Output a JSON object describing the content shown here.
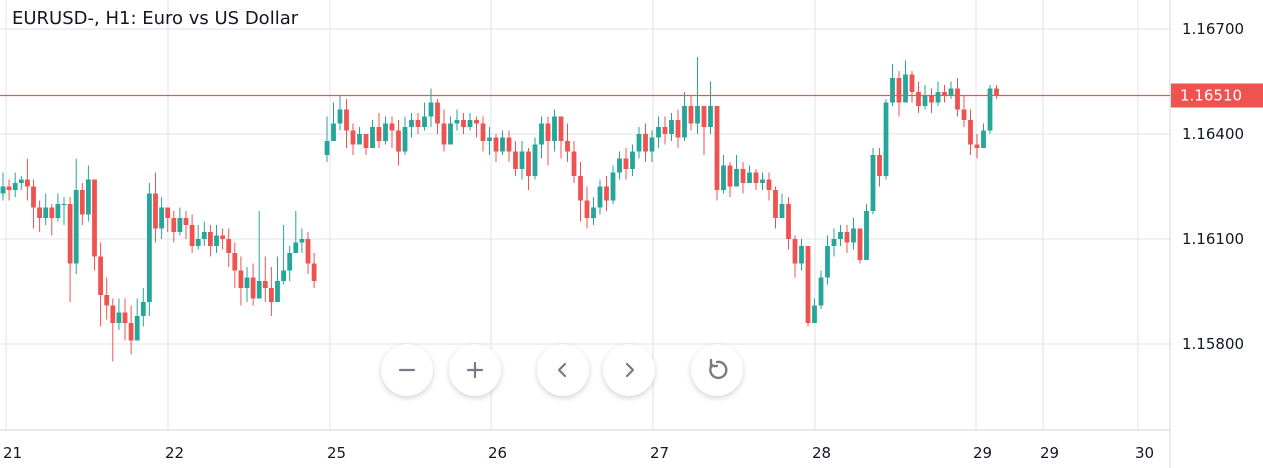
{
  "header": {
    "title": "EURUSD-, H1: Euro vs US Dollar"
  },
  "colors": {
    "up": "#26a69a",
    "down": "#ef5350",
    "price_line": "#ef5350",
    "grid": "#e0e3eb"
  },
  "controls": [
    {
      "name": "zoom-out-button",
      "icon": "minus-icon"
    },
    {
      "name": "zoom-in-button",
      "icon": "plus-icon"
    },
    {
      "name": "scroll-left-button",
      "icon": "chevron-left-icon"
    },
    {
      "name": "scroll-right-button",
      "icon": "chevron-right-icon"
    },
    {
      "name": "reset-chart-button",
      "icon": "reset-icon"
    }
  ],
  "chart_data": {
    "type": "candlestick",
    "title": "EURUSD-, H1: Euro vs US Dollar",
    "y_ticks": [
      "1.16700",
      "1.16400",
      "1.16100",
      "1.15800"
    ],
    "ylim": [
      1.1555,
      1.1685
    ],
    "x_ticks": [
      "21",
      "22",
      "25",
      "26",
      "27",
      "28",
      "29",
      "29",
      "30"
    ],
    "current_price": 1.1651,
    "current_price_label": "1.16510",
    "grid": true,
    "segments": [
      {
        "from": 1.1623,
        "anchors": [
          [
            1.1625,
            1.1629,
            1.1621
          ],
          [
            1.1624,
            1.1627,
            1.1621
          ],
          [
            1.1626,
            1.1629,
            1.1622
          ],
          [
            1.1627,
            1.1628,
            1.1624
          ],
          [
            1.1625,
            1.1633,
            1.1621
          ],
          [
            1.1619,
            1.1627,
            1.1613
          ],
          [
            1.1616,
            1.1621,
            1.1612
          ],
          [
            1.1619,
            1.1623,
            1.1614
          ],
          [
            1.1616,
            1.162,
            1.1611
          ],
          [
            1.162,
            1.1623,
            1.1615
          ],
          [
            1.162,
            1.1622,
            1.1614
          ],
          [
            1.1603,
            1.1622,
            1.1592
          ],
          [
            1.1624,
            1.1633,
            1.16
          ],
          [
            1.1617,
            1.1626,
            1.1614
          ],
          [
            1.1627,
            1.1631,
            1.1615
          ],
          [
            1.1605,
            1.1627,
            1.1601
          ],
          [
            1.1594,
            1.1609,
            1.1585
          ],
          [
            1.1591,
            1.1599,
            1.1587
          ],
          [
            1.1586,
            1.1593,
            1.1575
          ],
          [
            1.1589,
            1.1593,
            1.1584
          ],
          [
            1.1586,
            1.1593,
            1.1581
          ],
          [
            1.1581,
            1.1591,
            1.1577
          ],
          [
            1.1588,
            1.1593,
            1.1582
          ],
          [
            1.1592,
            1.1596,
            1.1585
          ],
          [
            1.1623,
            1.1626,
            1.1588
          ],
          [
            1.1613,
            1.1629,
            1.1609
          ],
          [
            1.1619,
            1.1622,
            1.161
          ],
          [
            1.1616,
            1.1619,
            1.1612
          ],
          [
            1.1612,
            1.1618,
            1.1609
          ],
          [
            1.1616,
            1.1619,
            1.1611
          ],
          [
            1.1614,
            1.1618,
            1.161
          ],
          [
            1.1608,
            1.1617,
            1.1606
          ],
          [
            1.161,
            1.1614,
            1.1607
          ],
          [
            1.1612,
            1.1615,
            1.1608
          ],
          [
            1.1608,
            1.1614,
            1.1605
          ],
          [
            1.1611,
            1.1614,
            1.1606
          ],
          [
            1.161,
            1.1613,
            1.1607
          ],
          [
            1.1606,
            1.1613,
            1.1602
          ],
          [
            1.1601,
            1.1609,
            1.1596
          ],
          [
            1.1596,
            1.1605,
            1.1591
          ],
          [
            1.1599,
            1.1602,
            1.1592
          ],
          [
            1.1593,
            1.1603,
            1.1591
          ],
          [
            1.1598,
            1.1618,
            1.1594
          ],
          [
            1.1596,
            1.1605,
            1.1592
          ],
          [
            1.1592,
            1.1602,
            1.1588
          ],
          [
            1.1598,
            1.1605,
            1.1592
          ],
          [
            1.1601,
            1.1614,
            1.1597
          ],
          [
            1.1606,
            1.1608,
            1.1598
          ],
          [
            1.1609,
            1.1618,
            1.1606
          ],
          [
            1.161,
            1.1613,
            1.1606
          ],
          [
            1.1603,
            1.1612,
            1.16
          ],
          [
            1.1598,
            1.1606,
            1.1596
          ]
        ]
      },
      {
        "from": 1.1634,
        "anchors": [
          [
            1.1638,
            1.1645,
            1.1632
          ],
          [
            1.1643,
            1.1649,
            1.1638
          ],
          [
            1.1647,
            1.1651,
            1.1641
          ],
          [
            1.1641,
            1.165,
            1.1636
          ],
          [
            1.1637,
            1.1643,
            1.1634
          ],
          [
            1.164,
            1.1642,
            1.1637
          ],
          [
            1.1636,
            1.164,
            1.1634
          ],
          [
            1.1642,
            1.1644,
            1.1637
          ],
          [
            1.1638,
            1.1646,
            1.1636
          ],
          [
            1.1643,
            1.1645,
            1.1637
          ],
          [
            1.1641,
            1.1645,
            1.1636
          ],
          [
            1.1635,
            1.1644,
            1.1631
          ],
          [
            1.1642,
            1.1645,
            1.1634
          ],
          [
            1.1644,
            1.1646,
            1.1639
          ],
          [
            1.1642,
            1.1646,
            1.164
          ],
          [
            1.1645,
            1.1649,
            1.1641
          ],
          [
            1.1649,
            1.1653,
            1.1642
          ],
          [
            1.1643,
            1.165,
            1.164
          ],
          [
            1.1637,
            1.1647,
            1.1635
          ],
          [
            1.1643,
            1.1645,
            1.1639
          ],
          [
            1.1644,
            1.1647,
            1.1641
          ],
          [
            1.1642,
            1.1646,
            1.164
          ],
          [
            1.1644,
            1.1646,
            1.1641
          ],
          [
            1.1643,
            1.1645,
            1.1639
          ],
          [
            1.1638,
            1.1645,
            1.1635
          ],
          [
            1.1639,
            1.1642,
            1.1634
          ],
          [
            1.1635,
            1.164,
            1.1632
          ],
          [
            1.1639,
            1.1641,
            1.1634
          ],
          [
            1.1635,
            1.1641,
            1.1632
          ],
          [
            1.163,
            1.1638,
            1.1628
          ],
          [
            1.1635,
            1.1638,
            1.1627
          ],
          [
            1.1628,
            1.1636,
            1.1624
          ],
          [
            1.1637,
            1.1639,
            1.1627
          ],
          [
            1.1643,
            1.1645,
            1.1633
          ],
          [
            1.1638,
            1.1645,
            1.1631
          ],
          [
            1.1645,
            1.1647,
            1.1635
          ],
          [
            1.1638,
            1.1645,
            1.1633
          ],
          [
            1.1635,
            1.1643,
            1.1632
          ],
          [
            1.1628,
            1.1638,
            1.1626
          ],
          [
            1.1621,
            1.1632,
            1.1615
          ],
          [
            1.1616,
            1.1625,
            1.1613
          ],
          [
            1.1619,
            1.1622,
            1.1614
          ],
          [
            1.1625,
            1.1627,
            1.1617
          ],
          [
            1.1621,
            1.1628,
            1.1618
          ],
          [
            1.1629,
            1.1631,
            1.162
          ],
          [
            1.1633,
            1.1635,
            1.1627
          ],
          [
            1.163,
            1.1636,
            1.1627
          ],
          [
            1.1635,
            1.1637,
            1.1628
          ],
          [
            1.164,
            1.1642,
            1.1633
          ],
          [
            1.1635,
            1.1643,
            1.1632
          ],
          [
            1.1639,
            1.1641,
            1.1632
          ],
          [
            1.1642,
            1.1645,
            1.1636
          ],
          [
            1.164,
            1.1645,
            1.1637
          ],
          [
            1.1644,
            1.1646,
            1.1638
          ],
          [
            1.1639,
            1.1647,
            1.1636
          ],
          [
            1.1648,
            1.1652,
            1.1638
          ],
          [
            1.1643,
            1.1651,
            1.1641
          ],
          [
            1.1648,
            1.1662,
            1.164
          ],
          [
            1.1642,
            1.1648,
            1.1634
          ],
          [
            1.1648,
            1.1655,
            1.164
          ],
          [
            1.1624,
            1.1648,
            1.1621
          ],
          [
            1.1631,
            1.1634,
            1.1623
          ],
          [
            1.1625,
            1.1632,
            1.1622
          ],
          [
            1.163,
            1.1634,
            1.1627
          ],
          [
            1.1626,
            1.1632,
            1.1623
          ],
          [
            1.1629,
            1.1631,
            1.1626
          ],
          [
            1.1626,
            1.163,
            1.1624
          ],
          [
            1.1627,
            1.1629,
            1.1624
          ],
          [
            1.1624,
            1.1629,
            1.1621
          ],
          [
            1.1616,
            1.1625,
            1.1613
          ],
          [
            1.162,
            1.1623,
            1.1616
          ],
          [
            1.161,
            1.1622,
            1.1607
          ],
          [
            1.1603,
            1.1611,
            1.1599
          ],
          [
            1.1608,
            1.161,
            1.1601
          ],
          [
            1.1586,
            1.1608,
            1.1585
          ],
          [
            1.1591,
            1.1593,
            1.1586
          ],
          [
            1.1599,
            1.1601,
            1.159
          ],
          [
            1.1608,
            1.1611,
            1.1597
          ],
          [
            1.161,
            1.1613,
            1.1605
          ],
          [
            1.1612,
            1.1614,
            1.1608
          ],
          [
            1.1609,
            1.1614,
            1.1606
          ],
          [
            1.1613,
            1.1616,
            1.1607
          ],
          [
            1.1604,
            1.1613,
            1.1603
          ],
          [
            1.1618,
            1.162,
            1.1604
          ],
          [
            1.1634,
            1.1636,
            1.1617
          ],
          [
            1.1628,
            1.1636,
            1.1625
          ],
          [
            1.1649,
            1.165,
            1.1627
          ],
          [
            1.1656,
            1.166,
            1.1648
          ],
          [
            1.1649,
            1.1658,
            1.1645
          ],
          [
            1.1657,
            1.1661,
            1.1649
          ],
          [
            1.1652,
            1.1658,
            1.1649
          ],
          [
            1.1648,
            1.1655,
            1.1646
          ],
          [
            1.1651,
            1.1654,
            1.1647
          ],
          [
            1.1649,
            1.1653,
            1.1646
          ],
          [
            1.1652,
            1.1655,
            1.1648
          ],
          [
            1.1651,
            1.1654,
            1.1649
          ],
          [
            1.1653,
            1.1655,
            1.165
          ],
          [
            1.1647,
            1.1656,
            1.1645
          ],
          [
            1.1644,
            1.1651,
            1.1642
          ],
          [
            1.1637,
            1.1647,
            1.1634
          ],
          [
            1.1636,
            1.164,
            1.1633
          ],
          [
            1.1641,
            1.1643,
            1.1637
          ],
          [
            1.1653,
            1.1654,
            1.164
          ],
          [
            1.1651,
            1.1654,
            1.165
          ]
        ]
      }
    ]
  }
}
